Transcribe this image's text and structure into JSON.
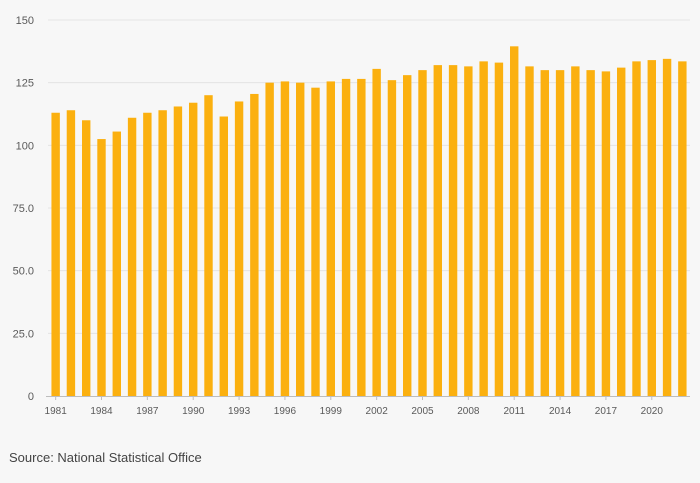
{
  "chart_data": {
    "type": "bar",
    "title": "",
    "xlabel": "",
    "ylabel": "",
    "ylim": [
      0,
      150
    ],
    "yticks": [
      0,
      25,
      50,
      75,
      100,
      125,
      150
    ],
    "ytick_labels": [
      "0",
      "25.0",
      "50.0",
      "75.0",
      "100",
      "125",
      "150"
    ],
    "categories": [
      "1981",
      "1982",
      "1983",
      "1984",
      "1985",
      "1986",
      "1987",
      "1988",
      "1989",
      "1990",
      "1991",
      "1992",
      "1993",
      "1994",
      "1995",
      "1996",
      "1997",
      "1998",
      "1999",
      "2000",
      "2001",
      "2002",
      "2003",
      "2004",
      "2005",
      "2006",
      "2007",
      "2008",
      "2009",
      "2010",
      "2011",
      "2012",
      "2013",
      "2014",
      "2015",
      "2016",
      "2017",
      "2018",
      "2019",
      "2020",
      "2021",
      "2022"
    ],
    "xtick_labels": [
      "1981",
      "1984",
      "1987",
      "1990",
      "1993",
      "1996",
      "1999",
      "2002",
      "2005",
      "2008",
      "2011",
      "2014",
      "2017",
      "2020"
    ],
    "values": [
      113,
      114,
      110,
      102.5,
      105.5,
      111,
      113,
      114,
      115.5,
      117,
      120,
      111.5,
      117.5,
      120.5,
      125,
      125.5,
      125,
      123,
      125.5,
      126.5,
      126.5,
      130.5,
      126,
      128,
      130,
      132,
      132,
      131.5,
      133.5,
      133,
      139.5,
      131.5,
      130,
      130,
      131.5,
      130,
      129.5,
      131,
      133.5,
      134,
      134.5,
      133.5
    ],
    "bar_color": "#fbb00f",
    "grid": true,
    "legend": "none"
  },
  "footer": {
    "source": "Source: National Statistical Office"
  }
}
